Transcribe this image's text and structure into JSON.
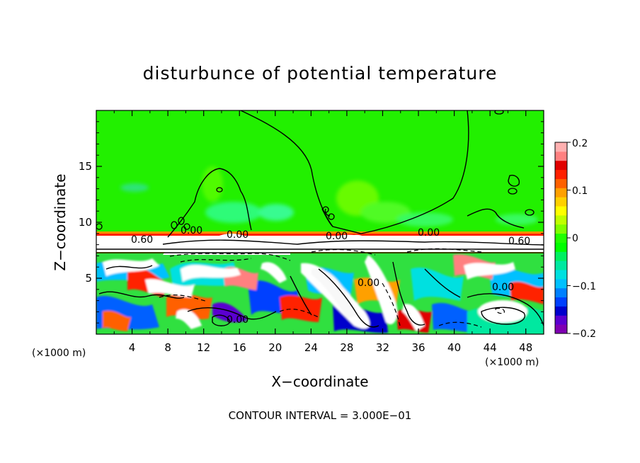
{
  "chart_data": {
    "type": "heatmap",
    "title": "disturbunce of potential temperature",
    "xlabel": "X−coordinate",
    "ylabel": "Z−coordinate",
    "x_unit_left": "(×1000 m)",
    "x_unit_right": "(×1000 m)",
    "xlim": [
      0,
      50
    ],
    "ylim": [
      0,
      20
    ],
    "x_ticks": [
      "4",
      "8",
      "12",
      "16",
      "20",
      "24",
      "28",
      "32",
      "36",
      "40",
      "44",
      "48"
    ],
    "y_ticks": [
      "5",
      "10",
      "15"
    ],
    "colorbar": {
      "range": [
        -0.2,
        0.2
      ],
      "tick_labels": [
        "0.2",
        "0.1",
        "0",
        "−0.1",
        "−0.2"
      ],
      "colors": [
        "#7f00b2",
        "#5a00d0",
        "#0000cc",
        "#0040ff",
        "#0080ff",
        "#00c0ff",
        "#00e0e0",
        "#00e8a0",
        "#00f060",
        "#00ff00",
        "#20ff00",
        "#80ff00",
        "#c0ff00",
        "#ffff00",
        "#ffd000",
        "#ffa000",
        "#ff6000",
        "#ff2000",
        "#e00000",
        "#ff8080",
        "#ffb0b0"
      ]
    },
    "contour_labels": [
      "0.60",
      "0.00",
      "0.00",
      "0.00",
      "0.00",
      "0.00",
      "0.60",
      "0.00",
      "0.00"
    ],
    "footer": "CONTOUR INTERVAL = 3.000E−01"
  }
}
